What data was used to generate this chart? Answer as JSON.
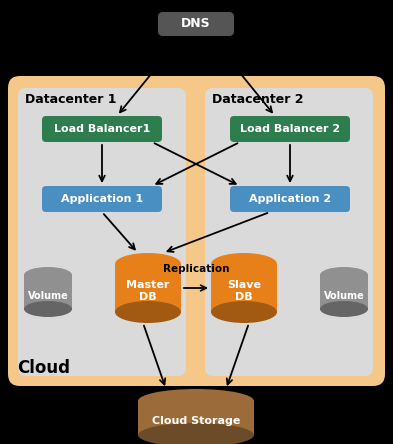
{
  "fig_width": 3.93,
  "fig_height": 4.44,
  "dpi": 100,
  "bg_color": "#000000",
  "cloud_bg": "#F5C88A",
  "dc_bg": "#DADADA",
  "lb_color": "#2D7D4E",
  "app_color": "#4A8FC2",
  "dns_color": "#555555",
  "storage_color": "#9B6B3A",
  "db_orange": "#E8801A",
  "db_gray": "#909090",
  "white": "#FFFFFF",
  "black": "#000000",
  "cloud_label": "Cloud",
  "dc1_label": "Datacenter 1",
  "dc2_label": "Datacenter 2",
  "dns_label": "DNS",
  "lb1_label": "Load Balancer1",
  "lb2_label": "Load Balancer 2",
  "app1_label": "Application 1",
  "app2_label": "Application 2",
  "master_label": "Master\nDB",
  "slave_label": "Slave\nDB",
  "vol_label": "Volume",
  "replication_label": "Replication",
  "storage_label": "Cloud Storage",
  "xlim": [
    0,
    393
  ],
  "ylim": [
    0,
    444
  ]
}
